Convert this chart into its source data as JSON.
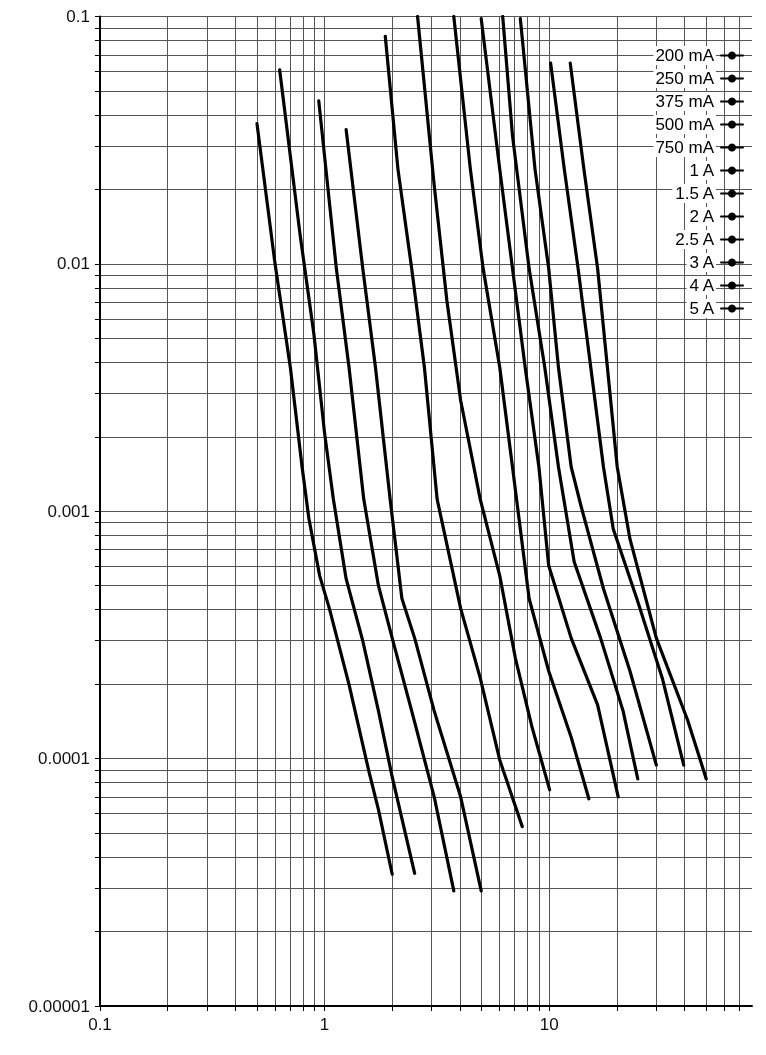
{
  "chart_data": {
    "type": "line",
    "log": "xy",
    "grid": true,
    "legend": "top right",
    "marker": "none",
    "line_style": "solid",
    "xlim": [
      0.1,
      80
    ],
    "ylim": [
      1e-05,
      0.1
    ],
    "xticks": [
      0.1,
      {
        "value": 0.2,
        "label": null
      },
      {
        "value": 0.3,
        "label": null
      },
      {
        "value": 0.4,
        "label": null
      },
      {
        "value": 0.5,
        "label": null
      },
      {
        "value": 0.6,
        "label": null
      },
      {
        "value": 0.7,
        "label": null
      },
      {
        "value": 0.8,
        "label": null
      },
      {
        "value": 0.9,
        "label": null
      },
      1,
      {
        "value": 2,
        "label": null
      },
      {
        "value": 3,
        "label": null
      },
      {
        "value": 4,
        "label": null
      },
      {
        "value": 5,
        "label": null
      },
      {
        "value": 6,
        "label": null
      },
      {
        "value": 7,
        "label": null
      },
      {
        "value": 8,
        "label": null
      },
      {
        "value": 9,
        "label": null
      },
      10,
      {
        "value": 20,
        "label": null
      },
      {
        "value": 30,
        "label": null
      },
      {
        "value": 40,
        "label": null
      },
      {
        "value": 50,
        "label": null
      },
      {
        "value": 60,
        "label": null
      },
      {
        "value": 70,
        "label": null
      }
    ],
    "yticks": [
      {
        "value": 1e-05,
        "label": "0.00001"
      },
      {
        "value": 2e-05,
        "label": null
      },
      {
        "value": 3e-05,
        "label": null
      },
      {
        "value": 4e-05,
        "label": null
      },
      {
        "value": 5e-05,
        "label": null
      },
      {
        "value": 6e-05,
        "label": null
      },
      {
        "value": 7e-05,
        "label": null
      },
      {
        "value": 8e-05,
        "label": null
      },
      {
        "value": 9e-05,
        "label": null
      },
      0.0001,
      {
        "value": 0.0002,
        "label": null
      },
      {
        "value": 0.0003,
        "label": null
      },
      {
        "value": 0.0004,
        "label": null
      },
      {
        "value": 0.0005,
        "label": null
      },
      {
        "value": 0.0006,
        "label": null
      },
      {
        "value": 0.0007,
        "label": null
      },
      {
        "value": 0.0008,
        "label": null
      },
      {
        "value": 0.0009,
        "label": null
      },
      0.001,
      {
        "value": 0.002,
        "label": null
      },
      {
        "value": 0.003,
        "label": null
      },
      {
        "value": 0.004,
        "label": null
      },
      {
        "value": 0.005,
        "label": null
      },
      {
        "value": 0.006,
        "label": null
      },
      {
        "value": 0.007,
        "label": null
      },
      {
        "value": 0.008,
        "label": null
      },
      {
        "value": 0.009,
        "label": null
      },
      0.01,
      {
        "value": 0.02,
        "label": null
      },
      {
        "value": 0.03,
        "label": null
      },
      {
        "value": 0.04,
        "label": null
      },
      {
        "value": 0.05,
        "label": null
      },
      {
        "value": 0.06,
        "label": null
      },
      {
        "value": 0.07,
        "label": null
      },
      {
        "value": 0.08,
        "label": null
      },
      {
        "value": 0.09,
        "label": null
      },
      0.1
    ],
    "series": [
      {
        "name": "200 mA",
        "color": "#000000",
        "x": [
          0.5,
          0.6,
          0.704,
          0.794,
          0.852,
          0.951,
          1.05,
          1.285,
          1.57,
          1.737,
          2.0
        ],
        "values": [
          0.0369,
          0.0102,
          0.00381,
          0.00151,
          0.00093,
          0.000548,
          0.000405,
          0.000199,
          8.99e-05,
          6.22e-05,
          3.41e-05
        ]
      },
      {
        "name": "250 mA",
        "color": "#000000",
        "x": [
          0.631,
          0.778,
          0.896,
          1.0,
          1.094,
          1.247,
          1.479,
          1.737,
          2.0,
          2.518
        ],
        "values": [
          0.0608,
          0.0131,
          0.00521,
          0.00207,
          0.00112,
          0.000534,
          0.000299,
          0.000156,
          8.43e-05,
          3.44e-05
        ]
      },
      {
        "name": "375 mA",
        "color": "#000000",
        "x": [
          0.942,
          1.128,
          1.285,
          1.494,
          1.737,
          2.0,
          2.442,
          3.076,
          3.761
        ],
        "values": [
          0.0456,
          0.00959,
          0.00381,
          0.00112,
          0.0005,
          0.000307,
          0.000156,
          7.01e-05,
          2.92e-05
        ]
      },
      {
        "name": "500 mA",
        "color": "#000000",
        "x": [
          1.247,
          1.479,
          1.685,
          1.958,
          2.209,
          2.518,
          3.076,
          4.034,
          4.981
        ],
        "values": [
          0.0349,
          0.00959,
          0.00381,
          0.00112,
          0.000444,
          0.000307,
          0.000156,
          7.01e-05,
          2.92e-05
        ]
      },
      {
        "name": "750 mA",
        "color": "#000000",
        "x": [
          1.863,
          2.122,
          2.442,
          2.783,
          3.17,
          4.034,
          4.93,
          6.026,
          7.59
        ],
        "values": [
          0.0832,
          0.0241,
          0.00959,
          0.00381,
          0.00112,
          0.000405,
          0.000212,
          9.86e-05,
          5.31e-05
        ]
      },
      {
        "name": "1 A",
        "color": "#000000",
        "x": [
          2.594,
          3.076,
          3.505,
          4.034,
          4.93,
          6.026,
          7.07,
          8.387,
          10.05
        ],
        "values": [
          0.1,
          0.0208,
          0.00708,
          0.00281,
          0.00112,
          0.000548,
          0.000255,
          0.000134,
          7.48e-05
        ]
      },
      {
        "name": "1.5 A",
        "color": "#000000",
        "x": [
          3.761,
          4.459,
          5.08,
          6.026,
          6.865,
          8.14,
          9.95,
          12.53,
          15.02
        ],
        "values": [
          0.1,
          0.0241,
          0.00959,
          0.00381,
          0.00151,
          0.000444,
          0.000226,
          0.000122,
          6.88e-05
        ]
      },
      {
        "name": "2 A",
        "color": "#000000",
        "x": [
          4.981,
          6.026,
          6.865,
          7.82,
          9.0,
          9.95,
          12.53,
          16.43,
          20.29
        ],
        "values": [
          0.098,
          0.0241,
          0.00959,
          0.00381,
          0.00151,
          0.000603,
          0.000307,
          0.000165,
          7.01e-05
        ]
      },
      {
        "name": "2.5 A",
        "color": "#000000",
        "x": [
          6.21,
          6.865,
          8.14,
          9.56,
          11.0,
          12.92,
          16.94,
          21.33,
          24.8
        ],
        "values": [
          0.1,
          0.033,
          0.00959,
          0.00381,
          0.00151,
          0.000625,
          0.000307,
          0.000156,
          8.28e-05
        ]
      },
      {
        "name": "3 A",
        "color": "#000000",
        "x": [
          7.44,
          8.65,
          9.95,
          11.0,
          12.53,
          13.86,
          17.45,
          22.89,
          30.0
        ],
        "values": [
          0.098,
          0.0241,
          0.00959,
          0.00381,
          0.00151,
          0.00105,
          0.000486,
          0.000226,
          9.42e-05
        ]
      },
      {
        "name": "4 A",
        "color": "#000000",
        "x": [
          10.15,
          11.68,
          13.45,
          15.32,
          17.45,
          19.29,
          24.55,
          31.87,
          39.72
        ],
        "values": [
          0.0648,
          0.0241,
          0.00959,
          0.00381,
          0.00151,
          0.000847,
          0.000444,
          0.000212,
          9.42e-05
        ]
      },
      {
        "name": "5 A",
        "color": "#000000",
        "x": [
          12.41,
          14.28,
          16.43,
          18.17,
          20.09,
          22.89,
          30.0,
          41.37,
          50.05
        ],
        "values": [
          0.0648,
          0.0241,
          0.00959,
          0.00381,
          0.00151,
          0.000773,
          0.000307,
          0.000143,
          8.28e-05
        ]
      }
    ]
  }
}
